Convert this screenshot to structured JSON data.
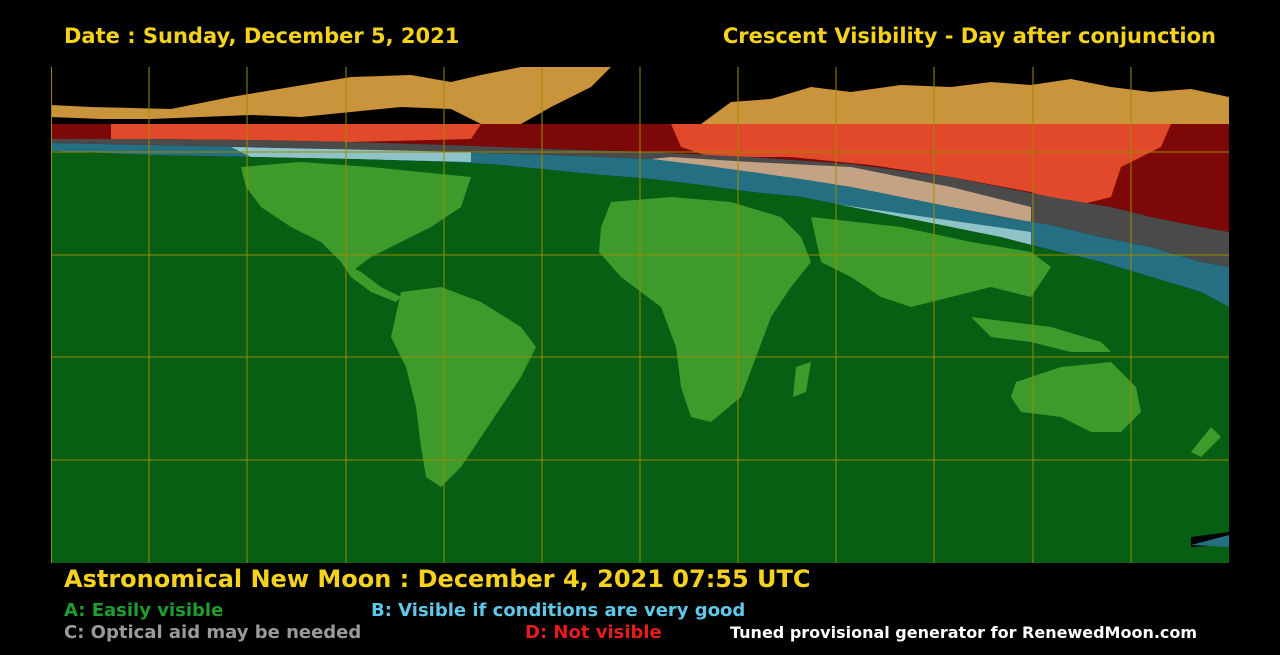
{
  "header": {
    "date": "Date : Sunday, December 5, 2021",
    "title": "Crescent Visibility - Day after conjunction"
  },
  "footer": {
    "new_moon": "Astronomical New Moon : December 4, 2021 07:55 UTC",
    "credit": "Tuned provisional generator for RenewedMoon.com"
  },
  "legend": [
    {
      "code": "A",
      "label": "A: Easily visible",
      "color": "#1e9e2e"
    },
    {
      "code": "B",
      "label": "B: Visible if conditions are very good",
      "color": "#5fc7e8"
    },
    {
      "code": "C",
      "label": "C: Optical aid may be needed",
      "color": "#9a9a9a"
    },
    {
      "code": "D",
      "label": "D: Not visible",
      "color": "#e81c1c"
    }
  ],
  "map_colors": {
    "ocean_visible": "#065f12",
    "land_visible": "#3f9a2c",
    "zone_b": "#256f82",
    "zone_c": "#4a4a4a",
    "zone_d": "#7d0808",
    "land_lit": "#c9943c",
    "grid": "#9a8a00"
  }
}
